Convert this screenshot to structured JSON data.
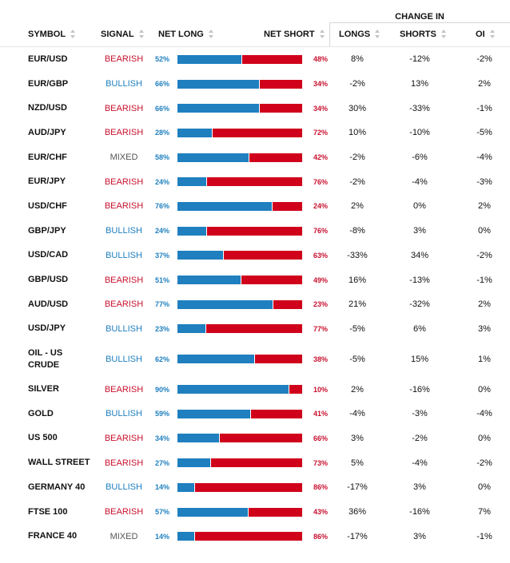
{
  "header": {
    "change_in": "CHANGE IN",
    "symbol": "SYMBOL",
    "signal": "SIGNAL",
    "net_long": "NET LONG",
    "net_short": "NET SHORT",
    "longs": "LONGS",
    "shorts": "SHORTS",
    "oi": "OI"
  },
  "colors": {
    "long": "#1f7fbf",
    "short": "#d0021b",
    "bearish": "#c8102e",
    "bullish": "#1e7fbf",
    "mixed": "#555555"
  },
  "rows": [
    {
      "symbol": "EUR/USD",
      "signal": "BEARISH",
      "net_long": "52%",
      "net_short": "48%",
      "long_frac": 0.52,
      "longs": "8%",
      "shorts": "-12%",
      "oi": "-2%"
    },
    {
      "symbol": "EUR/GBP",
      "signal": "BULLISH",
      "net_long": "66%",
      "net_short": "34%",
      "long_frac": 0.66,
      "longs": "-2%",
      "shorts": "13%",
      "oi": "2%"
    },
    {
      "symbol": "NZD/USD",
      "signal": "BEARISH",
      "net_long": "66%",
      "net_short": "34%",
      "long_frac": 0.66,
      "longs": "30%",
      "shorts": "-33%",
      "oi": "-1%"
    },
    {
      "symbol": "AUD/JPY",
      "signal": "BEARISH",
      "net_long": "28%",
      "net_short": "72%",
      "long_frac": 0.28,
      "longs": "10%",
      "shorts": "-10%",
      "oi": "-5%"
    },
    {
      "symbol": "EUR/CHF",
      "signal": "MIXED",
      "net_long": "58%",
      "net_short": "42%",
      "long_frac": 0.58,
      "longs": "-2%",
      "shorts": "-6%",
      "oi": "-4%"
    },
    {
      "symbol": "EUR/JPY",
      "signal": "BEARISH",
      "net_long": "24%",
      "net_short": "76%",
      "long_frac": 0.24,
      "longs": "-2%",
      "shorts": "-4%",
      "oi": "-3%"
    },
    {
      "symbol": "USD/CHF",
      "signal": "BEARISH",
      "net_long": "76%",
      "net_short": "24%",
      "long_frac": 0.76,
      "longs": "2%",
      "shorts": "0%",
      "oi": "2%"
    },
    {
      "symbol": "GBP/JPY",
      "signal": "BULLISH",
      "net_long": "24%",
      "net_short": "76%",
      "long_frac": 0.24,
      "longs": "-8%",
      "shorts": "3%",
      "oi": "0%"
    },
    {
      "symbol": "USD/CAD",
      "signal": "BULLISH",
      "net_long": "37%",
      "net_short": "63%",
      "long_frac": 0.37,
      "longs": "-33%",
      "shorts": "34%",
      "oi": "-2%"
    },
    {
      "symbol": "GBP/USD",
      "signal": "BEARISH",
      "net_long": "51%",
      "net_short": "49%",
      "long_frac": 0.51,
      "longs": "16%",
      "shorts": "-13%",
      "oi": "-1%"
    },
    {
      "symbol": "AUD/USD",
      "signal": "BEARISH",
      "net_long": "77%",
      "net_short": "23%",
      "long_frac": 0.77,
      "longs": "21%",
      "shorts": "-32%",
      "oi": "2%"
    },
    {
      "symbol": "USD/JPY",
      "signal": "BULLISH",
      "net_long": "23%",
      "net_short": "77%",
      "long_frac": 0.23,
      "longs": "-5%",
      "shorts": "6%",
      "oi": "3%"
    },
    {
      "symbol": "OIL - US\nCRUDE",
      "signal": "BULLISH",
      "net_long": "62%",
      "net_short": "38%",
      "long_frac": 0.62,
      "longs": "-5%",
      "shorts": "15%",
      "oi": "1%"
    },
    {
      "symbol": "SILVER",
      "signal": "BEARISH",
      "net_long": "90%",
      "net_short": "10%",
      "long_frac": 0.9,
      "longs": "2%",
      "shorts": "-16%",
      "oi": "0%"
    },
    {
      "symbol": "GOLD",
      "signal": "BULLISH",
      "net_long": "59%",
      "net_short": "41%",
      "long_frac": 0.59,
      "longs": "-4%",
      "shorts": "-3%",
      "oi": "-4%"
    },
    {
      "symbol": "US 500",
      "signal": "BEARISH",
      "net_long": "34%",
      "net_short": "66%",
      "long_frac": 0.34,
      "longs": "3%",
      "shorts": "-2%",
      "oi": "0%"
    },
    {
      "symbol": "WALL STREET",
      "signal": "BEARISH",
      "net_long": "27%",
      "net_short": "73%",
      "long_frac": 0.27,
      "longs": "5%",
      "shorts": "-4%",
      "oi": "-2%"
    },
    {
      "symbol": "GERMANY 40",
      "signal": "BULLISH",
      "net_long": "14%",
      "net_short": "86%",
      "long_frac": 0.14,
      "longs": "-17%",
      "shorts": "3%",
      "oi": "0%"
    },
    {
      "symbol": "FTSE 100",
      "signal": "BEARISH",
      "net_long": "57%",
      "net_short": "43%",
      "long_frac": 0.57,
      "longs": "36%",
      "shorts": "-16%",
      "oi": "7%"
    },
    {
      "symbol": "FRANCE 40",
      "signal": "MIXED",
      "net_long": "14%",
      "net_short": "86%",
      "long_frac": 0.14,
      "longs": "-17%",
      "shorts": "3%",
      "oi": "-1%"
    }
  ]
}
